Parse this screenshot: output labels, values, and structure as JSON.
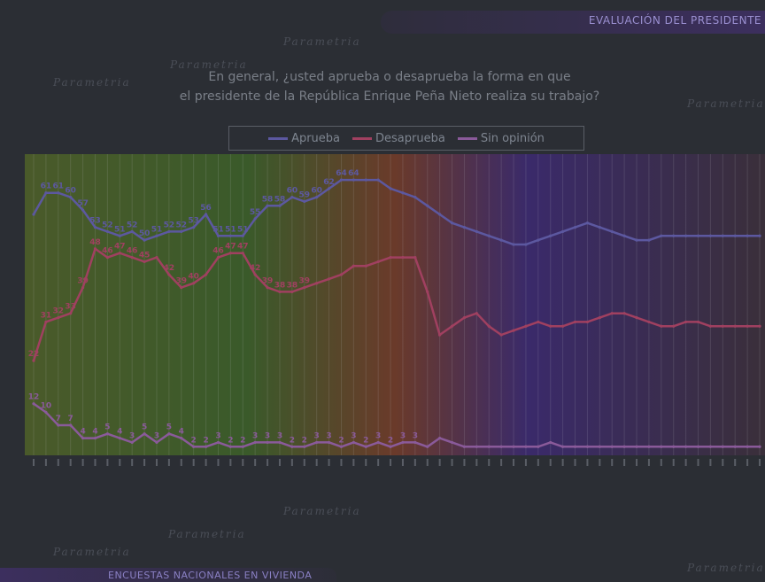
{
  "header": {
    "title": "EVALUACIÓN DEL PRESIDENTE",
    "question_line1": "En general, ¿usted aprueba o desaprueba la forma en que",
    "question_line2": "el presidente de la República Enrique Peña Nieto realiza su trabajo?",
    "watermark_text": "Parametria"
  },
  "footer": {
    "label": "ENCUESTAS NACIONALES EN VIVIENDA"
  },
  "colors": {
    "aprueba": "#5c58a0",
    "desaprueba": "#a04060",
    "sin_opinion": "#8a5a9a",
    "accent": "#3c2f5e"
  },
  "chart_data": {
    "type": "line",
    "title": "",
    "xlabel": "",
    "ylabel": "",
    "ylim": [
      0,
      70
    ],
    "grid": true,
    "legend_position": "top",
    "legend": [
      "Aprueba",
      "Desaprueba",
      "Sin opinión"
    ],
    "n_points": 60,
    "series": [
      {
        "name": "Aprueba",
        "values": [
          56,
          61,
          61,
          60,
          57,
          53,
          52,
          51,
          52,
          50,
          51,
          52,
          52,
          53,
          56,
          51,
          51,
          51,
          55,
          58,
          58,
          60,
          59,
          60,
          62,
          64,
          64,
          64,
          64,
          62,
          61,
          60,
          58,
          56,
          54,
          53,
          52,
          51,
          50,
          49,
          49,
          50,
          51,
          52,
          53,
          54,
          53,
          52,
          51,
          50,
          50,
          51,
          51,
          51,
          51,
          51,
          51,
          51,
          51,
          51
        ]
      },
      {
        "name": "Desaprueba",
        "values": [
          22,
          31,
          32,
          33,
          39,
          48,
          46,
          47,
          46,
          45,
          46,
          42,
          39,
          40,
          42,
          46,
          47,
          47,
          42,
          39,
          38,
          38,
          39,
          40,
          41,
          42,
          44,
          44,
          45,
          46,
          46,
          46,
          38,
          28,
          30,
          32,
          33,
          30,
          28,
          29,
          30,
          31,
          30,
          30,
          31,
          31,
          32,
          33,
          33,
          32,
          31,
          30,
          30,
          31,
          31,
          30,
          30,
          30,
          30,
          30
        ]
      },
      {
        "name": "Sin opinión",
        "values": [
          12,
          10,
          7,
          7,
          4,
          4,
          5,
          4,
          3,
          5,
          3,
          5,
          4,
          2,
          2,
          3,
          2,
          2,
          3,
          3,
          3,
          2,
          2,
          3,
          3,
          2,
          3,
          2,
          3,
          2,
          3,
          3,
          2,
          4,
          3,
          2,
          2,
          2,
          2,
          2,
          2,
          2,
          3,
          2,
          2,
          2,
          2,
          2,
          2,
          2,
          2,
          2,
          2,
          2,
          2,
          2,
          2,
          2,
          2,
          2
        ]
      }
    ],
    "point_labels": {
      "Aprueba": [
        "",
        "61",
        "61",
        "60",
        "57",
        "53",
        "52",
        "51",
        "52",
        "50",
        "51",
        "52",
        "52",
        "53",
        "56",
        "51",
        "51",
        "51",
        "55",
        "58",
        "58",
        "60",
        "59",
        "60",
        "62",
        "64",
        "64",
        "",
        "",
        "",
        "",
        "",
        "",
        "",
        "",
        "",
        "",
        "",
        "",
        "",
        "",
        "",
        "",
        "",
        "",
        "",
        "",
        "",
        "",
        "",
        "",
        "",
        "",
        "",
        "",
        "",
        "",
        "",
        "",
        ""
      ],
      "Desaprueba": [
        "22",
        "31",
        "32",
        "33",
        "39",
        "48",
        "46",
        "47",
        "46",
        "45",
        "",
        "42",
        "39",
        "40",
        "",
        "46",
        "47",
        "47",
        "42",
        "39",
        "38",
        "38",
        "39",
        "",
        "",
        "",
        "",
        "",
        "",
        "",
        "",
        "",
        "",
        "",
        "",
        "",
        "",
        "",
        "",
        "",
        "",
        "",
        "",
        "",
        "",
        "",
        "",
        "",
        "",
        "",
        "",
        "",
        "",
        "",
        "",
        "",
        "",
        "",
        "",
        ""
      ],
      "Sin opinión": [
        "12",
        "10",
        "7",
        "7",
        "4",
        "4",
        "5",
        "4",
        "3",
        "5",
        "3",
        "5",
        "4",
        "2",
        "2",
        "3",
        "2",
        "2",
        "3",
        "3",
        "3",
        "2",
        "2",
        "3",
        "3",
        "2",
        "3",
        "2",
        "3",
        "2",
        "3",
        "3",
        "",
        "",
        "",
        "",
        "",
        "",
        "",
        "",
        "",
        "",
        "",
        "",
        "",
        "",
        "",
        "",
        "",
        "",
        "",
        "",
        "",
        "",
        "",
        "",
        "",
        "",
        "",
        ""
      ]
    }
  }
}
